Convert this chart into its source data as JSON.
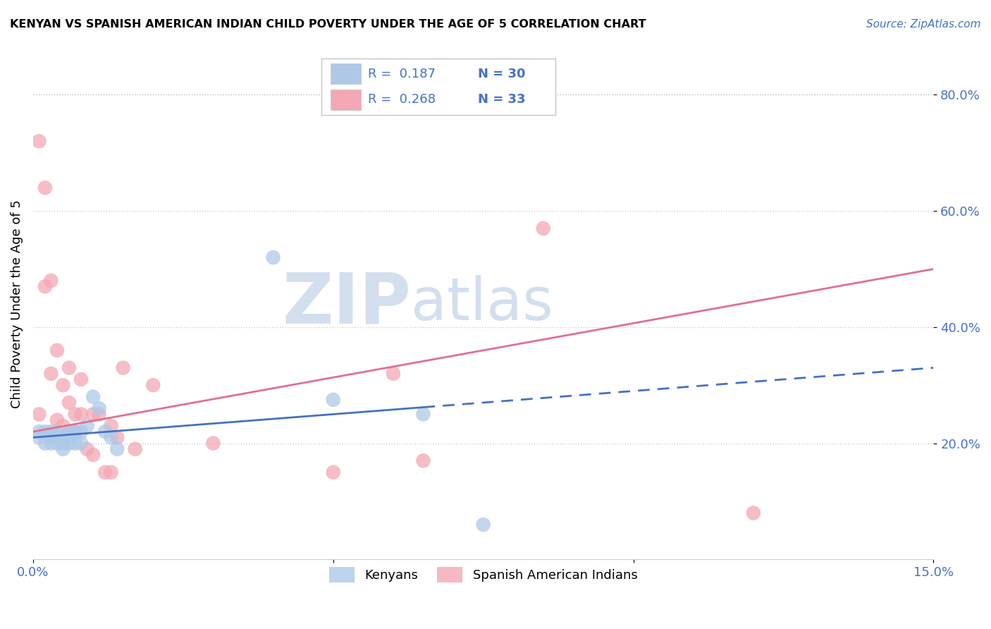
{
  "title": "KENYAN VS SPANISH AMERICAN INDIAN CHILD POVERTY UNDER THE AGE OF 5 CORRELATION CHART",
  "source": "Source: ZipAtlas.com",
  "ylabel": "Child Poverty Under the Age of 5",
  "xlabel": "",
  "xlim": [
    0.0,
    0.15
  ],
  "ylim": [
    0.0,
    0.88
  ],
  "xticks": [
    0.0,
    0.05,
    0.1,
    0.15
  ],
  "xticklabels": [
    "0.0%",
    "",
    "",
    "15.0%"
  ],
  "yticks": [
    0.2,
    0.4,
    0.6,
    0.8
  ],
  "yticklabels": [
    "20.0%",
    "40.0%",
    "60.0%",
    "80.0%"
  ],
  "kenyan_R": "0.187",
  "kenyan_N": "30",
  "spanish_R": "0.268",
  "spanish_N": "33",
  "kenyan_color": "#aec9e8",
  "spanish_color": "#f4a7b4",
  "kenyan_line_color": "#4472c4",
  "spanish_line_color": "#e07090",
  "legend_color": "#4472c4",
  "watermark_zip": "ZIP",
  "watermark_atlas": "atlas",
  "background_color": "#ffffff",
  "grid_color": "#cccccc",
  "kenyan_x": [
    0.001,
    0.001,
    0.002,
    0.002,
    0.003,
    0.003,
    0.003,
    0.004,
    0.004,
    0.004,
    0.005,
    0.005,
    0.005,
    0.006,
    0.006,
    0.006,
    0.007,
    0.007,
    0.008,
    0.008,
    0.009,
    0.01,
    0.011,
    0.012,
    0.013,
    0.014,
    0.04,
    0.05,
    0.065,
    0.075
  ],
  "kenyan_y": [
    0.22,
    0.21,
    0.2,
    0.22,
    0.21,
    0.22,
    0.2,
    0.21,
    0.22,
    0.2,
    0.2,
    0.21,
    0.19,
    0.22,
    0.2,
    0.21,
    0.2,
    0.22,
    0.2,
    0.22,
    0.23,
    0.28,
    0.26,
    0.22,
    0.21,
    0.19,
    0.52,
    0.275,
    0.25,
    0.06
  ],
  "spanish_x": [
    0.001,
    0.001,
    0.002,
    0.002,
    0.003,
    0.003,
    0.004,
    0.004,
    0.005,
    0.005,
    0.006,
    0.006,
    0.007,
    0.007,
    0.008,
    0.008,
    0.009,
    0.01,
    0.01,
    0.011,
    0.012,
    0.013,
    0.013,
    0.014,
    0.015,
    0.017,
    0.02,
    0.03,
    0.05,
    0.06,
    0.065,
    0.085,
    0.12
  ],
  "spanish_y": [
    0.72,
    0.25,
    0.64,
    0.47,
    0.48,
    0.32,
    0.36,
    0.24,
    0.3,
    0.23,
    0.33,
    0.27,
    0.25,
    0.22,
    0.31,
    0.25,
    0.19,
    0.25,
    0.18,
    0.25,
    0.15,
    0.23,
    0.15,
    0.21,
    0.33,
    0.19,
    0.3,
    0.2,
    0.15,
    0.32,
    0.17,
    0.57,
    0.08
  ],
  "kenyan_trend_x": [
    0.0,
    0.15
  ],
  "kenyan_trend_y": [
    0.21,
    0.33
  ],
  "spanish_trend_x": [
    0.0,
    0.15
  ],
  "spanish_trend_y": [
    0.22,
    0.5
  ]
}
